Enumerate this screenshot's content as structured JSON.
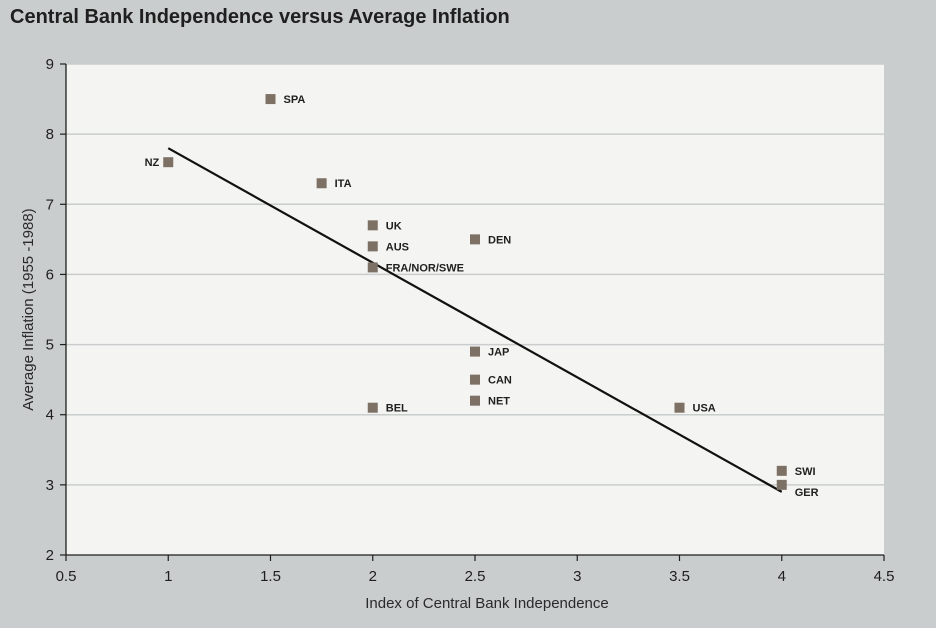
{
  "chart_data": {
    "type": "scatter",
    "title": "Central Bank Independence versus Average Inflation",
    "xlabel": "Index of Central Bank Independence",
    "ylabel": "Average Inflation (1955 -1988)",
    "xlim": [
      0.5,
      4.5
    ],
    "ylim": [
      2,
      9
    ],
    "xticks": [
      0.5,
      1,
      1.5,
      2,
      2.5,
      3,
      3.5,
      4,
      4.5
    ],
    "xtick_labels": [
      "0.5",
      "1",
      "1.5",
      "2",
      "2.5",
      "3",
      "3.5",
      "4",
      "4.5"
    ],
    "yticks": [
      2,
      3,
      4,
      5,
      6,
      7,
      8,
      9
    ],
    "ytick_labels": [
      "2",
      "3",
      "4",
      "5",
      "6",
      "7",
      "8",
      "9"
    ],
    "grid": "horizontal",
    "points": [
      {
        "label": "SPA",
        "x": 1.5,
        "y": 8.5
      },
      {
        "label": "NZ",
        "x": 1.0,
        "y": 7.6,
        "label_side": "left"
      },
      {
        "label": "ITA",
        "x": 1.75,
        "y": 7.3
      },
      {
        "label": "UK",
        "x": 2.0,
        "y": 6.7
      },
      {
        "label": "AUS",
        "x": 2.0,
        "y": 6.4
      },
      {
        "label": "FRA/NOR/SWE",
        "x": 2.0,
        "y": 6.1
      },
      {
        "label": "BEL",
        "x": 2.0,
        "y": 4.1
      },
      {
        "label": "DEN",
        "x": 2.5,
        "y": 6.5
      },
      {
        "label": "JAP",
        "x": 2.5,
        "y": 4.9
      },
      {
        "label": "CAN",
        "x": 2.5,
        "y": 4.5
      },
      {
        "label": "NET",
        "x": 2.5,
        "y": 4.2
      },
      {
        "label": "USA",
        "x": 3.5,
        "y": 4.1
      },
      {
        "label": "SWI",
        "x": 4.0,
        "y": 3.2
      },
      {
        "label": "GER",
        "x": 4.0,
        "y": 3.0,
        "label_dy": 0.1
      }
    ],
    "trendline": {
      "x": [
        1.0,
        4.0
      ],
      "y": [
        7.8,
        2.9
      ]
    },
    "colors": {
      "marker": "#7d7064",
      "trendline": "#111111",
      "plot_background": "#f4f4f2",
      "page_background": "#c9cdcd",
      "grid": "#c9cdcd"
    }
  }
}
